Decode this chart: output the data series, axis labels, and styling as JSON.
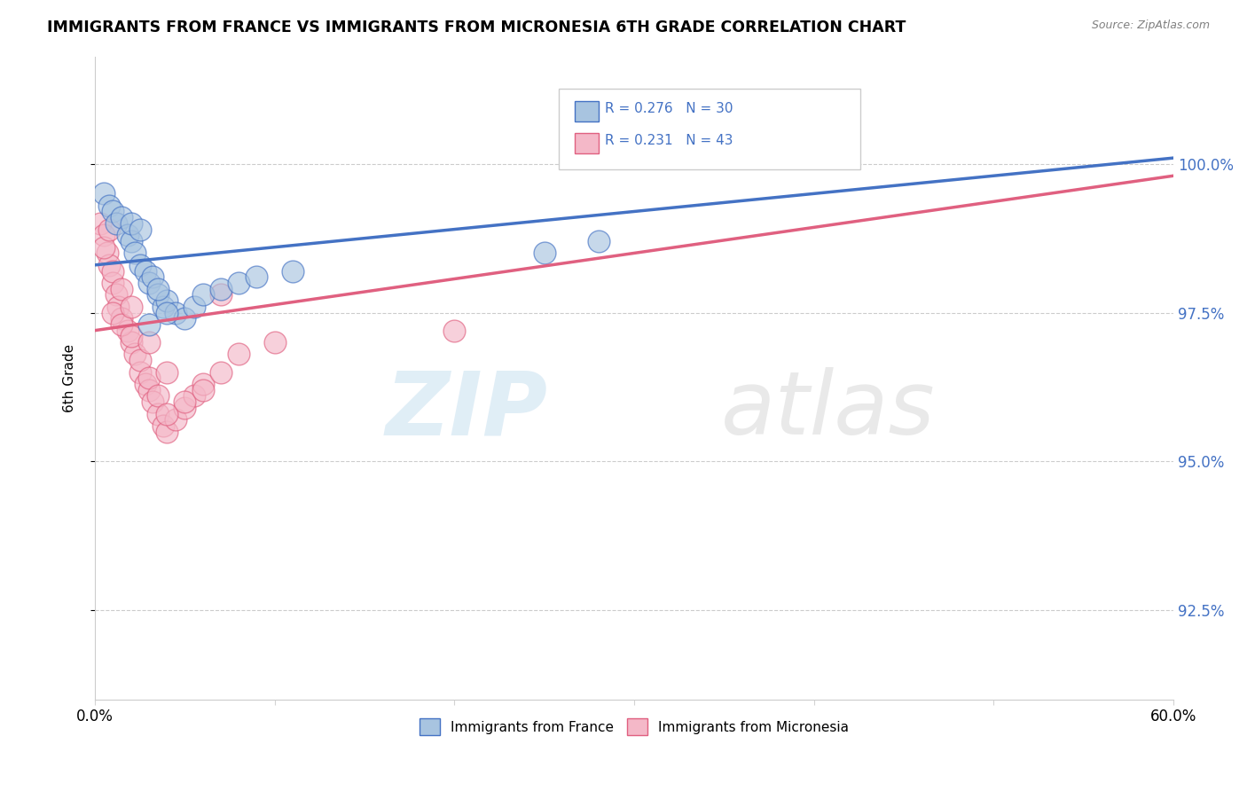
{
  "title": "IMMIGRANTS FROM FRANCE VS IMMIGRANTS FROM MICRONESIA 6TH GRADE CORRELATION CHART",
  "source": "Source: ZipAtlas.com",
  "ylabel": "6th Grade",
  "france_color": "#a8c4e0",
  "micronesia_color": "#f4b8c8",
  "france_line_color": "#4472c4",
  "micronesia_line_color": "#e06080",
  "legend_france_label": "Immigrants from France",
  "legend_micronesia_label": "Immigrants from Micronesia",
  "france_R": "0.276",
  "france_N": "30",
  "micronesia_R": "0.231",
  "micronesia_N": "43",
  "france_x": [
    0.5,
    0.8,
    1.0,
    1.2,
    1.5,
    1.8,
    2.0,
    2.2,
    2.5,
    2.8,
    3.0,
    3.2,
    3.5,
    3.8,
    4.0,
    4.5,
    5.0,
    5.5,
    6.0,
    7.0,
    8.0,
    9.0,
    11.0,
    25.0,
    28.0,
    2.0,
    3.0,
    4.0,
    2.5,
    3.5
  ],
  "france_y": [
    99.5,
    99.3,
    99.2,
    99.0,
    99.1,
    98.8,
    98.7,
    98.5,
    98.3,
    98.2,
    98.0,
    98.1,
    97.8,
    97.6,
    97.7,
    97.5,
    97.4,
    97.6,
    97.8,
    97.9,
    98.0,
    98.1,
    98.2,
    98.5,
    98.7,
    99.0,
    97.3,
    97.5,
    98.9,
    97.9
  ],
  "micronesia_x": [
    0.3,
    0.5,
    0.7,
    0.8,
    1.0,
    1.2,
    1.3,
    1.5,
    1.8,
    2.0,
    2.2,
    2.5,
    2.8,
    3.0,
    3.2,
    3.5,
    3.8,
    4.0,
    4.5,
    5.0,
    5.5,
    6.0,
    7.0,
    8.0,
    10.0,
    1.0,
    1.5,
    2.0,
    2.5,
    3.0,
    3.5,
    4.0,
    5.0,
    6.0,
    0.5,
    1.0,
    1.5,
    2.0,
    3.0,
    4.0,
    0.8,
    20.0,
    7.0
  ],
  "micronesia_y": [
    99.0,
    98.8,
    98.5,
    98.3,
    98.0,
    97.8,
    97.6,
    97.4,
    97.2,
    97.0,
    96.8,
    96.5,
    96.3,
    96.2,
    96.0,
    95.8,
    95.6,
    95.5,
    95.7,
    95.9,
    96.1,
    96.3,
    96.5,
    96.8,
    97.0,
    97.5,
    97.3,
    97.1,
    96.7,
    96.4,
    96.1,
    95.8,
    96.0,
    96.2,
    98.6,
    98.2,
    97.9,
    97.6,
    97.0,
    96.5,
    98.9,
    97.2,
    97.8
  ],
  "france_line_x0": 0,
  "france_line_y0": 98.3,
  "france_line_x1": 60,
  "france_line_y1": 100.1,
  "micro_line_x0": 0,
  "micro_line_y0": 97.2,
  "micro_line_x1": 60,
  "micro_line_y1": 99.8,
  "xlim": [
    0,
    60
  ],
  "ylim": [
    91.0,
    101.8
  ],
  "yticks": [
    92.5,
    95.0,
    97.5,
    100.0
  ],
  "ytick_labels": [
    "92.5%",
    "95.0%",
    "97.5%",
    "100.0%"
  ]
}
